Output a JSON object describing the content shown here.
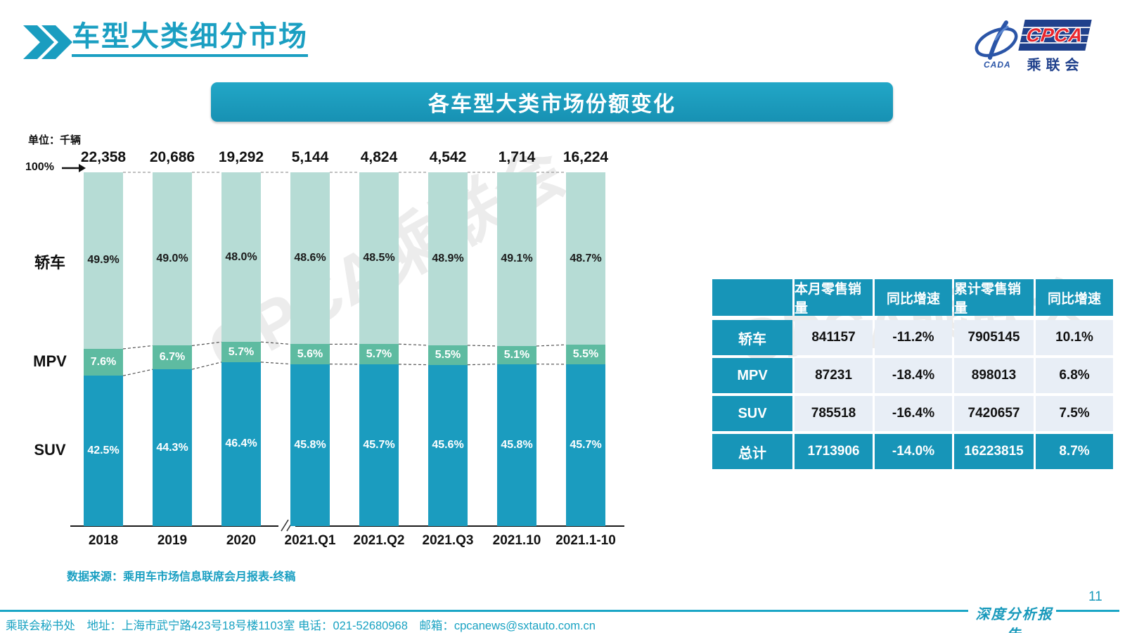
{
  "page": {
    "slide_title": "车型大类细分市场",
    "page_number": "11",
    "report_badge": "深度分析报告",
    "footer": "乘联会秘书处　地址：上海市武宁路423号18号楼1103室 电话：021-52680968　邮箱：cpcanews@sxtauto.com.cn",
    "watermark": "CPCA乘联会"
  },
  "logo": {
    "cpca": "CPCA",
    "cada": "CADA",
    "sub": "乘联会"
  },
  "chart": {
    "banner_title": "各车型大类市场份额变化",
    "unit_label": "单位：千辆",
    "axis_100_label": "100%",
    "source_note": "数据来源：乘用车市场信息联席会月报表-终稿"
  },
  "chart_data": {
    "type": "bar",
    "stacked": true,
    "title": "各车型大类市场份额变化",
    "unit": "千辆",
    "ylim": [
      0,
      100
    ],
    "grid": false,
    "axis_break_after": "2020",
    "categories": [
      "2018",
      "2019",
      "2020",
      "2021.Q1",
      "2021.Q2",
      "2021.Q3",
      "2021.10",
      "2021.1-10"
    ],
    "totals": [
      "22,358",
      "20,686",
      "19,292",
      "5,144",
      "4,824",
      "4,542",
      "1,714",
      "16,224"
    ],
    "series": [
      {
        "name": "轿车",
        "color": "#b6dcd5",
        "label_color": "#1a1a1a",
        "values": [
          49.9,
          49.0,
          48.0,
          48.6,
          48.5,
          48.9,
          49.1,
          48.7
        ]
      },
      {
        "name": "MPV",
        "color": "#5ebba1",
        "label_color": "#ffffff",
        "values": [
          7.6,
          6.7,
          5.7,
          5.6,
          5.7,
          5.5,
          5.1,
          5.5
        ]
      },
      {
        "name": "SUV",
        "color": "#1b9cbf",
        "label_color": "#ffffff",
        "values": [
          42.5,
          44.3,
          46.4,
          45.8,
          45.7,
          45.6,
          45.8,
          45.7
        ]
      }
    ]
  },
  "table": {
    "headers": [
      "",
      "本月零售销量",
      "同比增速",
      "累计零售销量",
      "同比增速"
    ],
    "rows": [
      {
        "label": "轿车",
        "cells": [
          "841157",
          "-11.2%",
          "7905145",
          "10.1%"
        ],
        "total": false
      },
      {
        "label": "MPV",
        "cells": [
          "87231",
          "-18.4%",
          "898013",
          "6.8%"
        ],
        "total": false
      },
      {
        "label": "SUV",
        "cells": [
          "785518",
          "-16.4%",
          "7420657",
          "7.5%"
        ],
        "total": false
      },
      {
        "label": "总计",
        "cells": [
          "1713906",
          "-14.0%",
          "16223815",
          "8.7%"
        ],
        "total": true
      }
    ]
  },
  "colors": {
    "accent": "#1899bb",
    "sedan_segment": "#b6dcd5",
    "mpv_segment": "#5ebba1",
    "suv_segment": "#1b9cbf",
    "table_cell_bg": "#e8eef6",
    "logo_navy": "#20418c",
    "logo_red": "#e8262d"
  }
}
